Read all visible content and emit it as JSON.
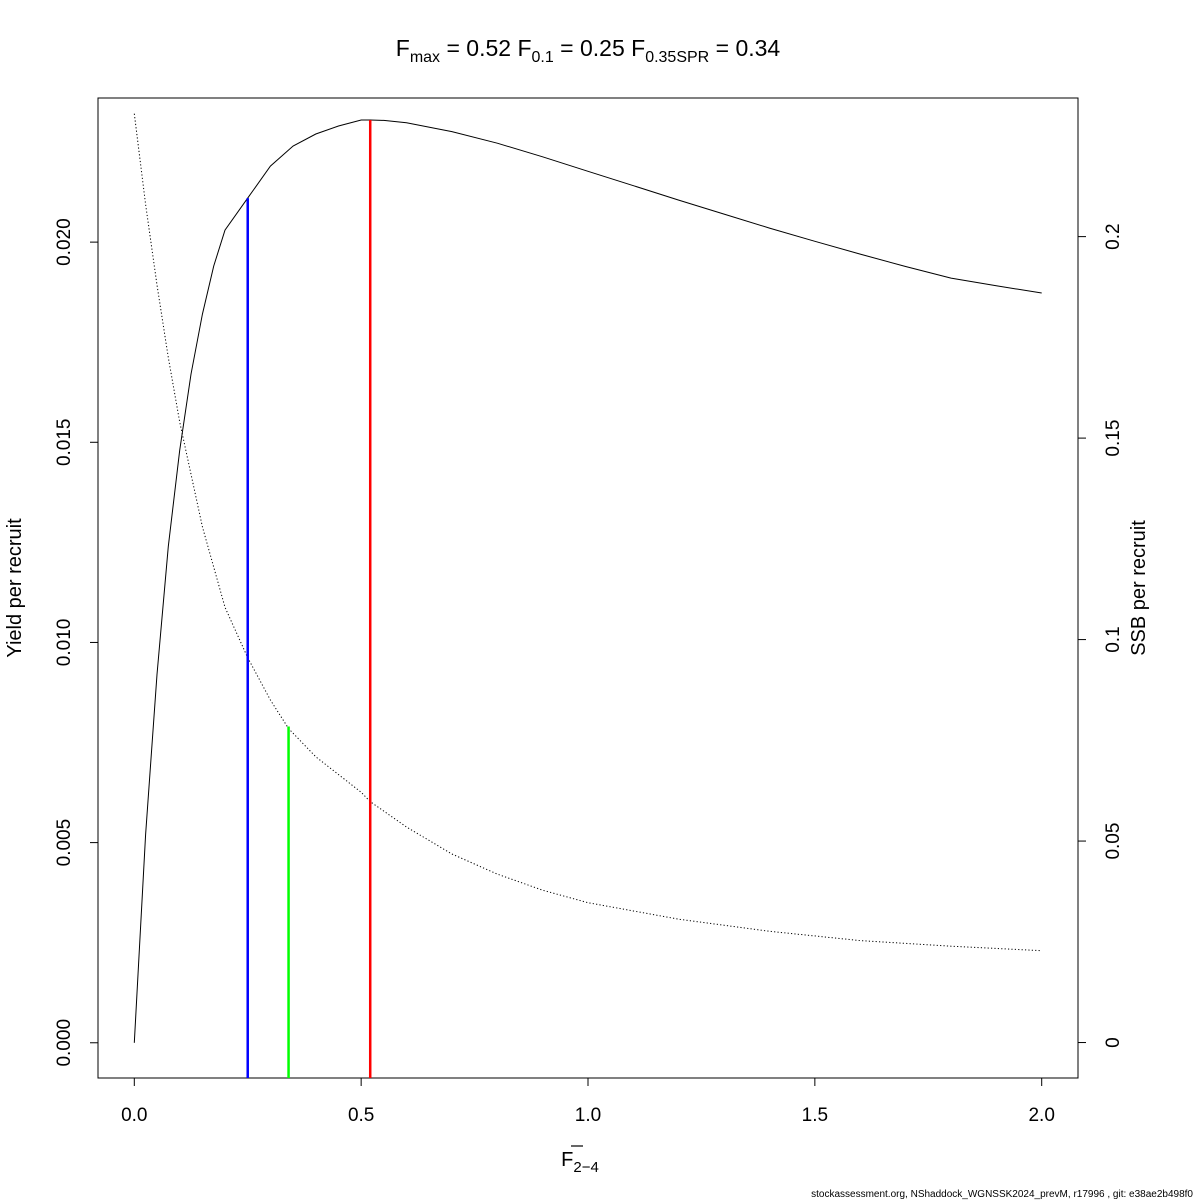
{
  "chart_data": {
    "type": "line",
    "title": {
      "fmax": {
        "base": "F",
        "sub": "max",
        "value": "0.52"
      },
      "f01": {
        "base": "F",
        "sub": "0.1",
        "value": "0.25"
      },
      "fspr": {
        "base": "F",
        "sub": "0.35SPR",
        "value": "0.34"
      }
    },
    "xlabel": {
      "base": "F",
      "sub": "2−4"
    },
    "ylabel_left": "Yield per recruit",
    "ylabel_right": "SSB per recruit",
    "xlim": [
      0,
      2
    ],
    "ylim_left": [
      -0.00088,
      0.0236
    ],
    "ylim_right": [
      -0.0088,
      0.2344
    ],
    "x_ticks": [
      "0.0",
      "0.5",
      "1.0",
      "1.5",
      "2.0"
    ],
    "y_left_ticks": [
      "0.000",
      "0.005",
      "0.010",
      "0.015",
      "0.020"
    ],
    "y_right_ticks": [
      "0",
      "0.05",
      "0.1",
      "0.15",
      "0.2"
    ],
    "grid": false,
    "series": [
      {
        "axis": "left",
        "style": "solid",
        "color": "#000000",
        "x": [
          0,
          0.025,
          0.05,
          0.075,
          0.1,
          0.125,
          0.15,
          0.175,
          0.2,
          0.25,
          0.3,
          0.35,
          0.4,
          0.45,
          0.5,
          0.52,
          0.55,
          0.6,
          0.7,
          0.8,
          0.9,
          1.0,
          1.1,
          1.2,
          1.3,
          1.4,
          1.5,
          1.6,
          1.7,
          1.8,
          1.9,
          2.0
        ],
        "y": [
          0.0,
          0.0052,
          0.0092,
          0.0124,
          0.0148,
          0.0167,
          0.0182,
          0.0194,
          0.0203,
          0.0211,
          0.0219,
          0.0224,
          0.0227,
          0.0229,
          0.02305,
          0.02305,
          0.02304,
          0.02298,
          0.02276,
          0.02247,
          0.02213,
          0.02177,
          0.02141,
          0.02105,
          0.0207,
          0.02035,
          0.02002,
          0.0197,
          0.01939,
          0.0191,
          0.01891,
          0.01873
        ]
      },
      {
        "axis": "right",
        "style": "dotted",
        "color": "#000000",
        "x": [
          0,
          0.025,
          0.05,
          0.075,
          0.1,
          0.15,
          0.2,
          0.25,
          0.3,
          0.34,
          0.4,
          0.5,
          0.52,
          0.6,
          0.7,
          0.8,
          0.9,
          1.0,
          1.2,
          1.4,
          1.6,
          1.8,
          2.0
        ],
        "y": [
          0.2305,
          0.208,
          0.188,
          0.17,
          0.154,
          0.128,
          0.108,
          0.0955,
          0.085,
          0.0779,
          0.0709,
          0.0621,
          0.0598,
          0.0535,
          0.0468,
          0.0418,
          0.0378,
          0.0347,
          0.0306,
          0.0276,
          0.0253,
          0.0239,
          0.0228
        ]
      }
    ],
    "reference_lines": [
      {
        "name": "F0.1",
        "x": 0.25,
        "y_top": 0.0211,
        "color": "#0000ff"
      },
      {
        "name": "F0.35SPR",
        "x": 0.34,
        "y_top": 0.0079,
        "color": "#00ff00"
      },
      {
        "name": "Fmax",
        "x": 0.52,
        "y_top": 0.02305,
        "color": "#ff0000"
      }
    ]
  },
  "footer": "stockassessment.org, NShaddock_WGNSSK2024_prevM, r17996 , git: e38ae2b498f0"
}
